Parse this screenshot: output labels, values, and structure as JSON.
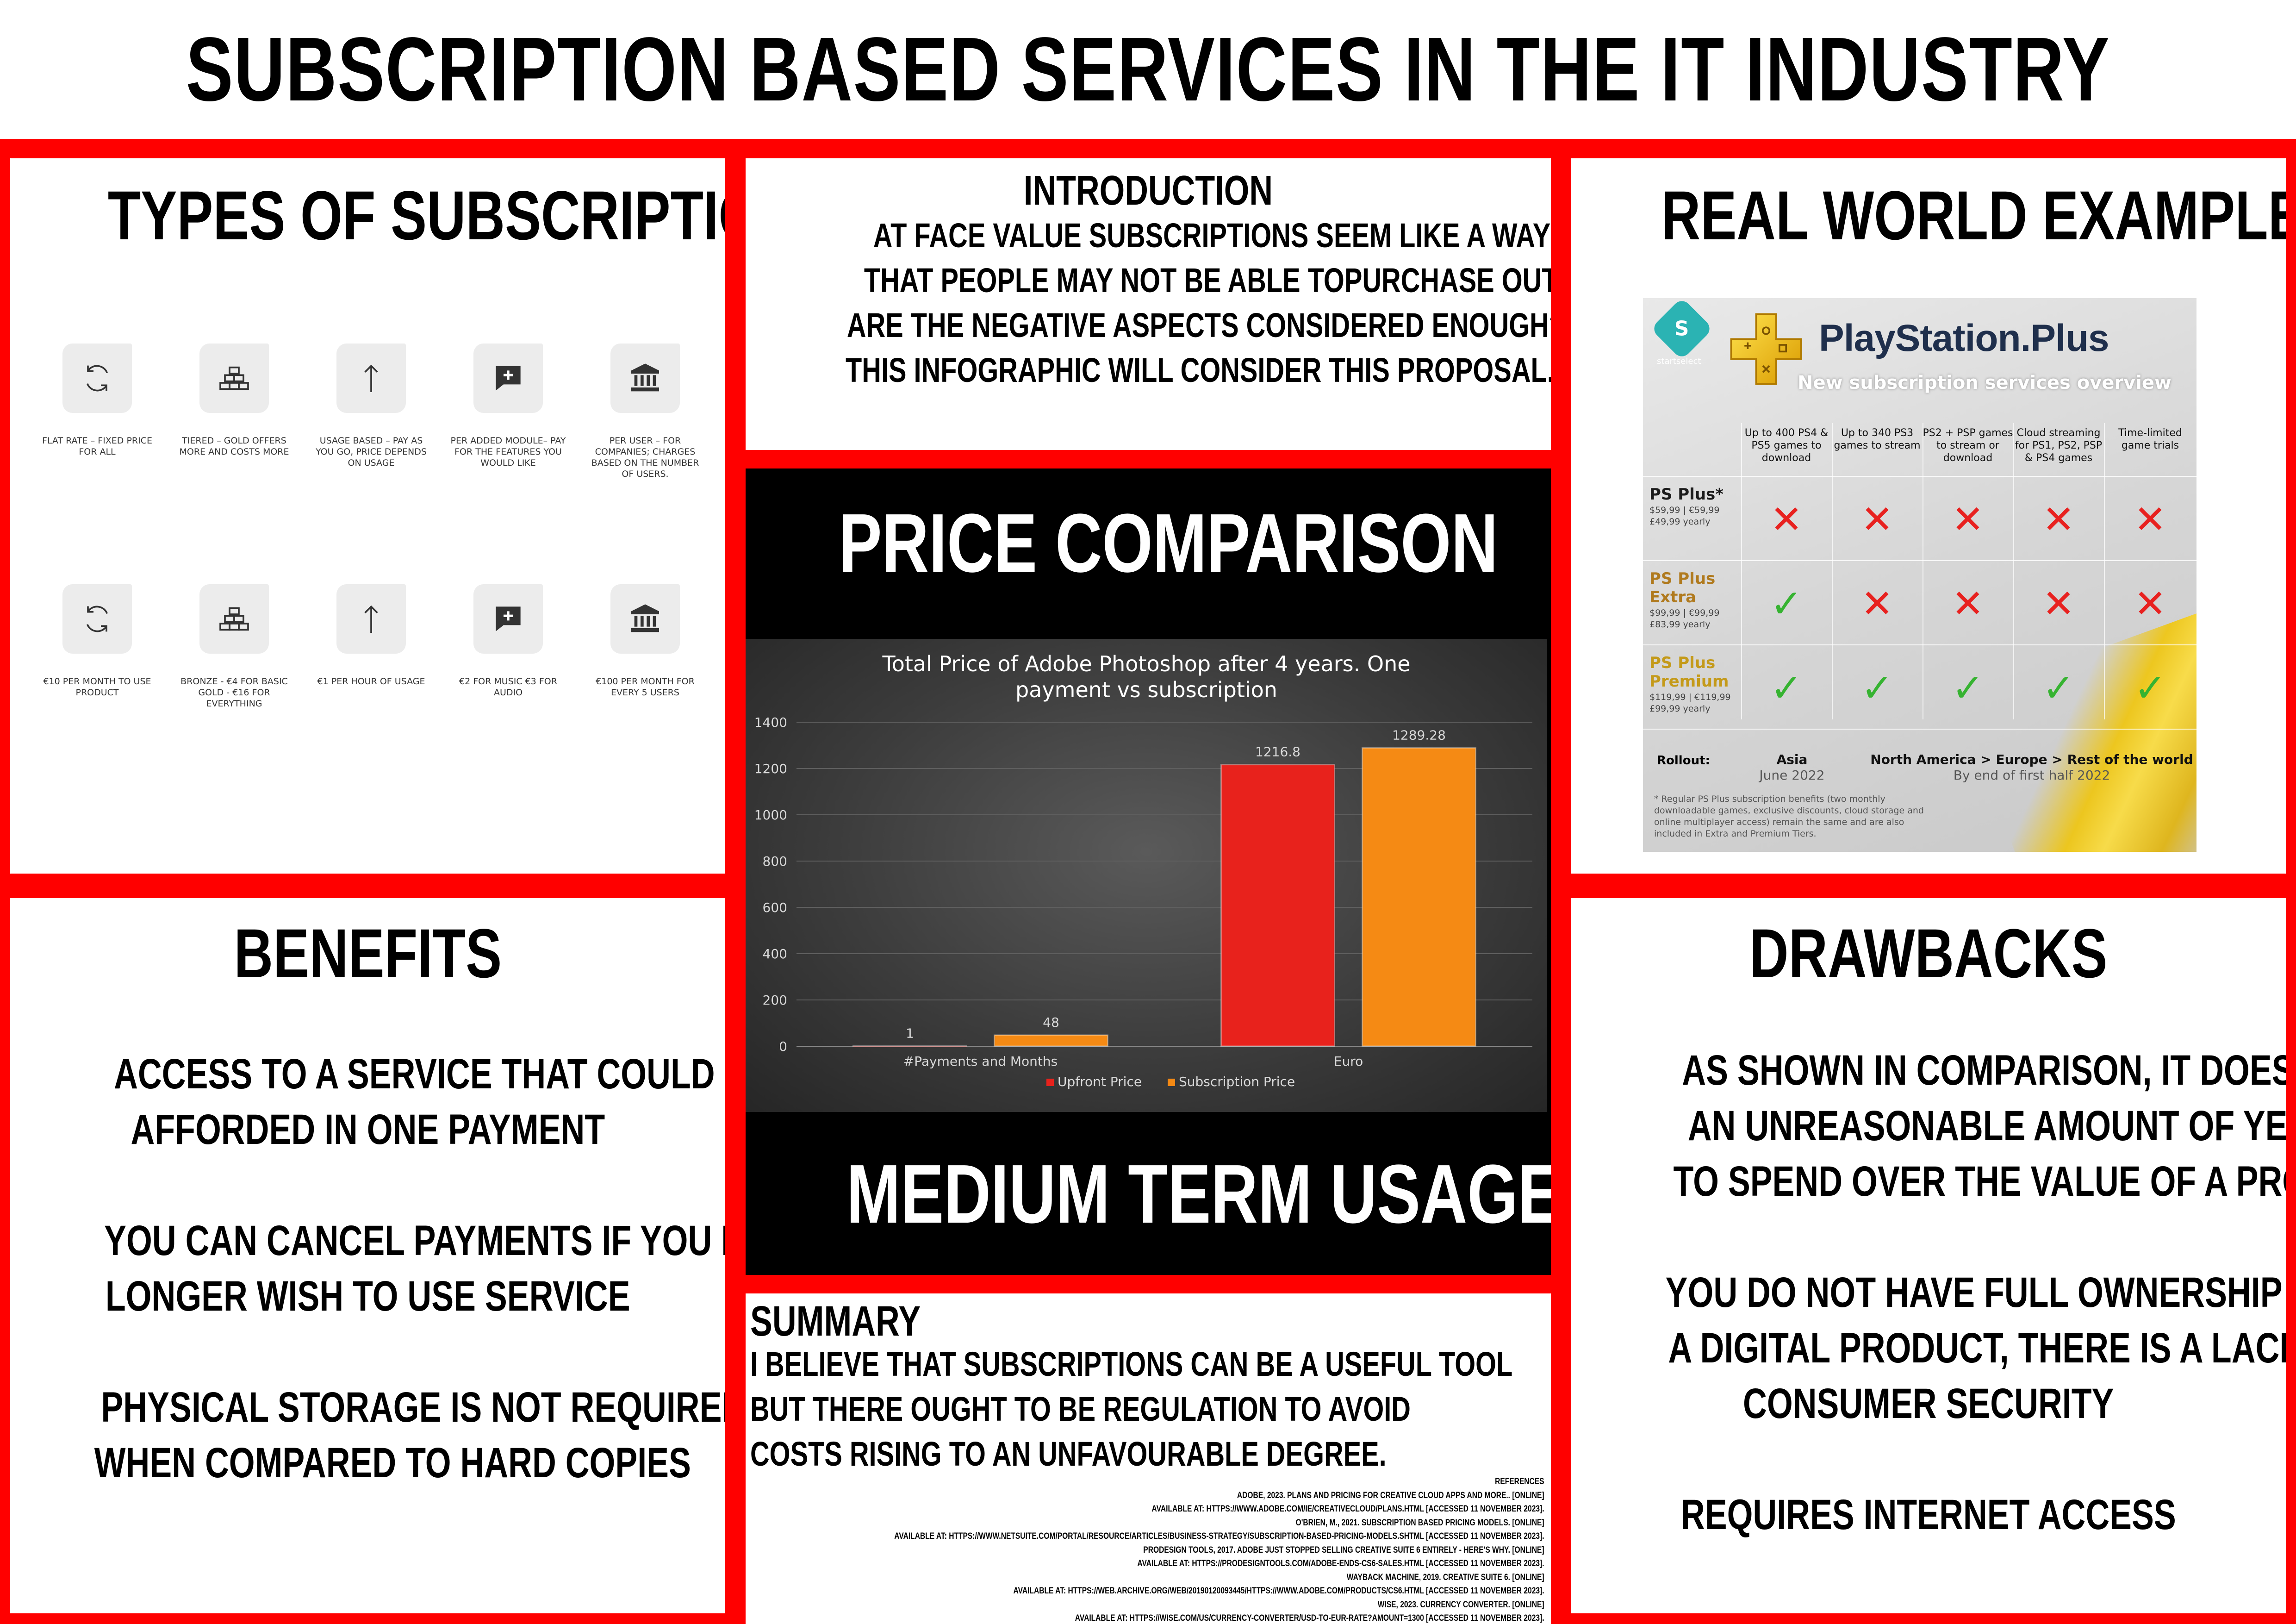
{
  "title": "SUBSCRIPTION BASED SERVICES IN THE IT INDUSTRY",
  "types": {
    "heading": "TYPES OF SUBSCRIPTION",
    "row1": [
      {
        "icon": "refresh-icon",
        "caption": "FLAT RATE – FIXED PRICE FOR ALL"
      },
      {
        "icon": "gold-bars-icon",
        "caption": "TIERED – GOLD OFFERS MORE AND COSTS MORE"
      },
      {
        "icon": "arrow-up-icon",
        "caption": "USAGE BASED – PAY AS YOU GO, PRICE DEPENDS ON USAGE"
      },
      {
        "icon": "add-comment-icon",
        "caption": "PER ADDED MODULE– PAY FOR THE FEATURES YOU WOULD LIKE"
      },
      {
        "icon": "bank-icon",
        "caption": "PER USER – FOR COMPANIES; CHARGES BASED ON THE NUMBER OF USERS."
      }
    ],
    "row2": [
      {
        "icon": "refresh-icon",
        "caption": "€10 PER MONTH TO USE PRODUCT"
      },
      {
        "icon": "gold-bars-icon",
        "caption": "BRONZE - €4 FOR BASIC GOLD - €16 FOR EVERYTHING"
      },
      {
        "icon": "arrow-up-icon",
        "caption": "€1 PER HOUR OF USAGE"
      },
      {
        "icon": "add-comment-icon",
        "caption": "€2 FOR MUSIC €3 FOR AUDIO"
      },
      {
        "icon": "bank-icon",
        "caption": "€100 PER MONTH FOR EVERY 5 USERS"
      }
    ]
  },
  "introduction": {
    "heading": "INTRODUCTION",
    "lines": [
      "AT FACE VALUE SUBSCRIPTIONS SEEM LIKE A WAY INTO PRODUCTS",
      "THAT PEOPLE MAY NOT BE ABLE TOPURCHASE OUTRIGHT BUT",
      "ARE THE NEGATIVE ASPECTS CONSIDERED ENOUGH?",
      "THIS INFOGRAPHIC WILL CONSIDER THIS PROPOSAL."
    ]
  },
  "price_comparison": {
    "heading": "PRICE COMPARISON",
    "footer": "MEDIUM TERM USAGE"
  },
  "chart_data": {
    "type": "bar",
    "title": "Total Price of Adobe Photoshop after 4 years. One payment vs subscription",
    "categories": [
      "#Payments and Months",
      "Euro"
    ],
    "series": [
      {
        "name": "Upfront Price",
        "values": [
          1,
          1216.8
        ],
        "labels": [
          "1",
          "1216.8"
        ],
        "color": "#e8221c"
      },
      {
        "name": "Subscription Price",
        "values": [
          48,
          1289.28
        ],
        "labels": [
          "48",
          "1289.28"
        ],
        "color": "#f58a14"
      }
    ],
    "ylim": [
      0,
      1400
    ],
    "yticks": [
      "0",
      "200",
      "400",
      "600",
      "800",
      "1000",
      "1200",
      "1400"
    ],
    "grid": true,
    "legend": "bottom"
  },
  "real_world": {
    "heading": "REAL WORLD EXAMPLE",
    "card": {
      "brand_small": "startselect",
      "logo_text": "PlayStation.Plus",
      "subtitle": "New subscription services overview",
      "columns": [
        "Up to 400 PS4 & PS5 games to download",
        "Up to 340 PS3 games to stream",
        "PS2 + PSP games to stream or download",
        "Cloud streaming for PS1, PS2, PSP & PS4 games",
        "Time-limited game trials"
      ],
      "tiers": [
        {
          "name": "PS Plus*",
          "color": "#1b1b1b",
          "price": "$59,99 | €59,99 £49,99 yearly",
          "marks": [
            "x",
            "x",
            "x",
            "x",
            "x"
          ]
        },
        {
          "name": "PS Plus Extra",
          "color": "#b07a1e",
          "price": "$99,99 | €99,99 £83,99 yearly",
          "marks": [
            "check",
            "x",
            "x",
            "x",
            "x"
          ]
        },
        {
          "name": "PS Plus Premium",
          "color": "#c49a1a",
          "price": "$119,99 | €119,99 £99,99 yearly",
          "marks": [
            "check",
            "check",
            "check",
            "check",
            "check"
          ]
        }
      ],
      "rollout_label": "Rollout:",
      "rollout_asia_region": "Asia",
      "rollout_asia_date": "June 2022",
      "rollout_world_region": "North America > Europe > Rest of the world",
      "rollout_world_date": "By end of first half 2022",
      "footnote": "* Regular PS Plus subscription benefits (two monthly downloadable games, exclusive discounts, cloud storage and online multiplayer access) remain the same and are also included in Extra and Premium Tiers."
    }
  },
  "benefits": {
    "heading": "BENEFITS",
    "lines": [
      "ACCESS TO A SERVICE THAT COULD NOT BE",
      "AFFORDED IN ONE PAYMENT",
      "",
      "YOU CAN CANCEL PAYMENTS IF YOU NO",
      "LONGER WISH TO USE SERVICE",
      "",
      "PHYSICAL STORAGE IS NOT REQUIRED",
      "WHEN COMPARED TO HARD COPIES"
    ]
  },
  "drawbacks": {
    "heading": "DRAWBACKS",
    "lines": [
      "AS SHOWN IN COMPARISON, IT DOES NOT TAKE",
      "AN UNREASONABLE AMOUNT OF YEARS FOR YOU",
      "TO SPEND OVER THE VALUE OF A PRODUCT",
      "",
      "YOU DO NOT HAVE FULL OWNERSHIP OF",
      "A DIGITAL PRODUCT, THERE IS A LACK OF",
      "CONSUMER SECURITY",
      "",
      "REQUIRES INTERNET ACCESS"
    ]
  },
  "summary": {
    "heading": "SUMMARY",
    "lines": [
      "I BELIEVE THAT SUBSCRIPTIONS CAN BE A USEFUL TOOL",
      "BUT THERE OUGHT TO BE REGULATION TO AVOID",
      "COSTS RISING TO AN UNFAVOURABLE DEGREE."
    ],
    "references": [
      "REFERENCES",
      "ADOBE, 2023. PLANS AND PRICING FOR CREATIVE CLOUD APPS AND MORE.. [ONLINE]",
      "AVAILABLE AT: HTTPS://WWW.ADOBE.COM/IE/CREATIVECLOUD/PLANS.HTML [ACCESSED 11 NOVEMBER 2023].",
      "O'BRIEN, M., 2021. SUBSCRIPTION BASED PRICING MODELS. [ONLINE]",
      "AVAILABLE AT: HTTPS://WWW.NETSUITE.COM/PORTAL/RESOURCE/ARTICLES/BUSINESS-STRATEGY/SUBSCRIPTION-BASED-PRICING-MODELS.SHTML [ACCESSED 11 NOVEMBER 2023].",
      "PRODESIGN TOOLS, 2017. ADOBE JUST STOPPED SELLING CREATIVE SUITE 6 ENTIRELY - HERE'S WHY. [ONLINE]",
      "AVAILABLE AT: HTTPS://PRODESIGNTOOLS.COM/ADOBE-ENDS-CS6-SALES.HTML [ACCESSED 11 NOVEMBER 2023].",
      "WAYBACK MACHINE, 2019. CREATIVE SUITE 6. [ONLINE]",
      "AVAILABLE AT: HTTPS://WEB.ARCHIVE.ORG/WEB/20190120093445/HTTPS://WWW.ADOBE.COM/PRODUCTS/CS6.HTML [ACCESSED 11 NOVEMBER 2023].",
      "WISE, 2023. CURRENCY CONVERTER. [ONLINE]",
      "AVAILABLE AT: HTTPS://WISE.COM/US/CURRENCY-CONVERTER/USD-TO-EUR-RATE?AMOUNT=1300 [ACCESSED 11 NOVEMBER 2023]."
    ]
  }
}
